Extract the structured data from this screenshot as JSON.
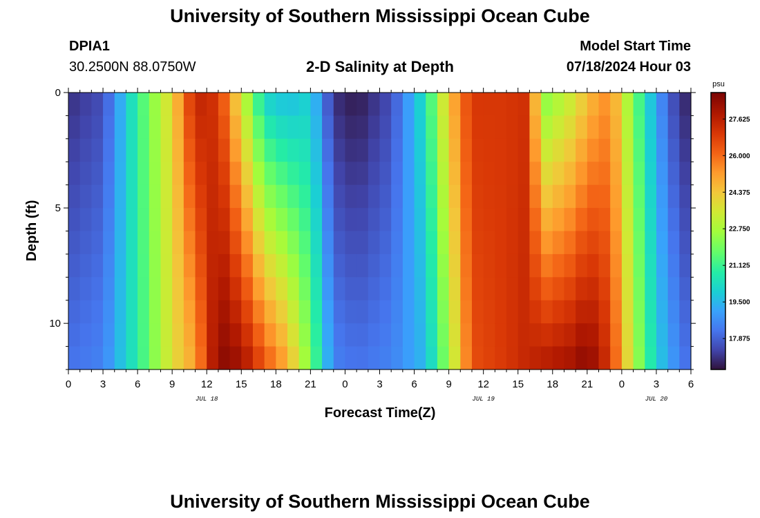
{
  "page": {
    "title_top": "University of Southern Mississippi Ocean Cube",
    "title_bottom": "University of Southern Mississippi Ocean Cube",
    "station_id": "DPIA1",
    "station_coords": "30.2500N  88.0750W",
    "plot_title": "2-D Salinity at Depth",
    "model_start_label": "Model Start Time",
    "model_start_value": "07/18/2024 Hour 03"
  },
  "chart_data": {
    "type": "heatmap",
    "title": "2-D Salinity at Depth",
    "xlabel": "Forecast Time(Z)",
    "ylabel": "Depth (ft)",
    "x_tick_labels": [
      "0",
      "3",
      "6",
      "9",
      "12",
      "15",
      "18",
      "21",
      "0",
      "3",
      "6",
      "9",
      "12",
      "15",
      "18",
      "21",
      "0",
      "3",
      "6"
    ],
    "x_date_labels": [
      {
        "text": "JUL 18",
        "hour_index": 12
      },
      {
        "text": "JUL 19",
        "hour_index": 36
      },
      {
        "text": "JUL 20",
        "hour_index": 51
      }
    ],
    "y_tick_labels": [
      "0",
      "5",
      "10"
    ],
    "x_range_hours": [
      0,
      54
    ],
    "y_range_ft": [
      0,
      12
    ],
    "colorbar": {
      "unit": "psu",
      "range": [
        16.5,
        28.8
      ],
      "ticks": [
        "27.625",
        "26.000",
        "24.375",
        "22.750",
        "21.125",
        "19.500",
        "17.875"
      ]
    },
    "cell_hours": 1,
    "cell_depth_ft": 1,
    "salinity_keyframes": [
      {
        "hour": 0,
        "surface": 17.0,
        "bottom": 18.2
      },
      {
        "hour": 3,
        "surface": 17.5,
        "bottom": 18.5
      },
      {
        "hour": 6,
        "surface": 21.0,
        "bottom": 20.8
      },
      {
        "hour": 9,
        "surface": 24.0,
        "bottom": 23.8
      },
      {
        "hour": 11,
        "surface": 27.6,
        "bottom": 25.0
      },
      {
        "hour": 13,
        "surface": 27.0,
        "bottom": 28.6
      },
      {
        "hour": 15,
        "surface": 23.5,
        "bottom": 28.2
      },
      {
        "hour": 17,
        "surface": 20.0,
        "bottom": 26.5
      },
      {
        "hour": 19,
        "surface": 19.5,
        "bottom": 25.0
      },
      {
        "hour": 21,
        "surface": 20.0,
        "bottom": 22.0
      },
      {
        "hour": 23,
        "surface": 17.0,
        "bottom": 18.5
      },
      {
        "hour": 25,
        "surface": 16.6,
        "bottom": 18.2
      },
      {
        "hour": 28,
        "surface": 17.5,
        "bottom": 18.5
      },
      {
        "hour": 31,
        "surface": 20.5,
        "bottom": 19.5
      },
      {
        "hour": 33,
        "surface": 24.5,
        "bottom": 22.5
      },
      {
        "hour": 35,
        "surface": 27.0,
        "bottom": 26.5
      },
      {
        "hour": 38,
        "surface": 27.0,
        "bottom": 27.0
      },
      {
        "hour": 40,
        "surface": 27.2,
        "bottom": 27.5
      },
      {
        "hour": 41,
        "surface": 22.0,
        "bottom": 27.8
      },
      {
        "hour": 44,
        "surface": 23.5,
        "bottom": 28.2
      },
      {
        "hour": 45,
        "surface": 24.5,
        "bottom": 28.7
      },
      {
        "hour": 47,
        "surface": 25.5,
        "bottom": 27.0
      },
      {
        "hour": 49,
        "surface": 22.0,
        "bottom": 23.0
      },
      {
        "hour": 51,
        "surface": 19.0,
        "bottom": 20.0
      },
      {
        "hour": 53,
        "surface": 17.0,
        "bottom": 18.5
      },
      {
        "hour": 54,
        "surface": 16.8,
        "bottom": 18.0
      }
    ]
  }
}
